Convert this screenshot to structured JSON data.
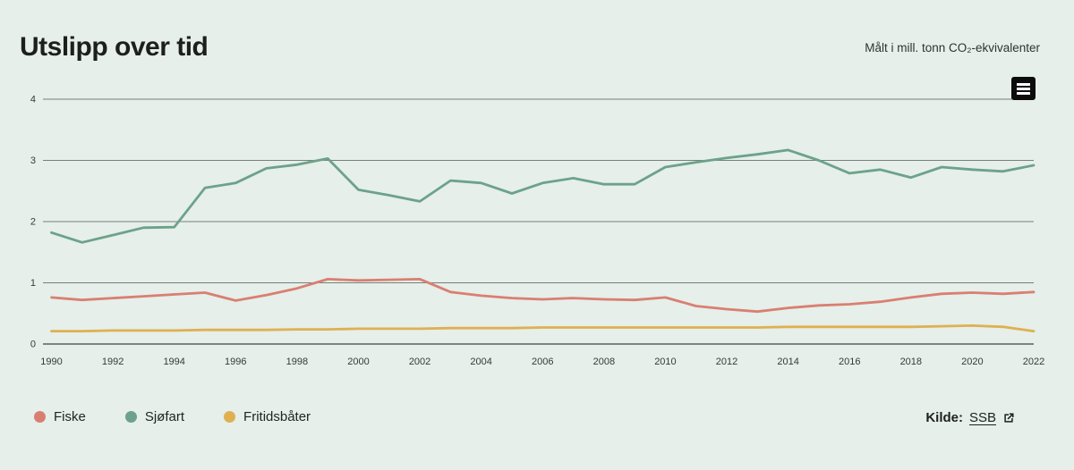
{
  "page": {
    "title": "Utslipp over tid",
    "unit_note": "Målt i mill. tonn CO₂-ekvivalenter",
    "source_label": "Kilde:",
    "source_link_text": "SSB"
  },
  "controls": {
    "context_menu_icon": "hamburger-menu-icon",
    "context_menu_color": "#0c0c0c"
  },
  "colors": {
    "background": "#e6efe9",
    "gridline": "#75817b",
    "baseline": "#59625d",
    "text": "#1c1f1d"
  },
  "chart_data": {
    "type": "line",
    "title": "Utslipp over tid",
    "subtitle": "Målt i mill. tonn CO₂-ekvivalenter",
    "source": "SSB",
    "grid": "horizontal",
    "legend_position": "bottom-left",
    "ylim": [
      0,
      4
    ],
    "y_ticks": [
      0,
      1,
      2,
      3,
      4
    ],
    "x": [
      1990,
      1991,
      1992,
      1993,
      1994,
      1995,
      1996,
      1997,
      1998,
      1999,
      2000,
      2001,
      2002,
      2003,
      2004,
      2005,
      2006,
      2007,
      2008,
      2009,
      2010,
      2011,
      2012,
      2013,
      2014,
      2015,
      2016,
      2017,
      2018,
      2019,
      2020,
      2021,
      2022
    ],
    "x_tick_labels": [
      "1990",
      "1992",
      "1994",
      "1996",
      "1998",
      "2000",
      "2002",
      "2004",
      "2006",
      "2008",
      "2010",
      "2012",
      "2014",
      "2016",
      "2018",
      "2020",
      "2022"
    ],
    "series": [
      {
        "name": "Fiske",
        "color": "#d97f72",
        "values": [
          0.76,
          0.72,
          0.75,
          0.78,
          0.81,
          0.84,
          0.71,
          0.8,
          0.91,
          1.06,
          1.04,
          1.05,
          1.06,
          0.85,
          0.79,
          0.75,
          0.73,
          0.75,
          0.73,
          0.72,
          0.76,
          0.62,
          0.57,
          0.53,
          0.59,
          0.63,
          0.65,
          0.69,
          0.76,
          0.82,
          0.84,
          0.82,
          0.85
        ]
      },
      {
        "name": "Sjøfart",
        "color": "#6ca28b",
        "values": [
          1.82,
          1.66,
          1.78,
          1.9,
          1.91,
          2.55,
          2.63,
          2.87,
          2.93,
          3.03,
          2.52,
          2.43,
          2.33,
          2.67,
          2.63,
          2.46,
          2.63,
          2.71,
          2.61,
          2.61,
          2.89,
          2.97,
          3.04,
          3.1,
          3.17,
          3.0,
          2.79,
          2.85,
          2.72,
          2.89,
          2.85,
          2.82,
          2.92
        ]
      },
      {
        "name": "Fritidsbåter",
        "color": "#dfb052",
        "values": [
          0.21,
          0.21,
          0.22,
          0.22,
          0.22,
          0.23,
          0.23,
          0.23,
          0.24,
          0.24,
          0.25,
          0.25,
          0.25,
          0.26,
          0.26,
          0.26,
          0.27,
          0.27,
          0.27,
          0.27,
          0.27,
          0.27,
          0.27,
          0.27,
          0.28,
          0.28,
          0.28,
          0.28,
          0.28,
          0.29,
          0.3,
          0.28,
          0.21
        ]
      }
    ]
  }
}
